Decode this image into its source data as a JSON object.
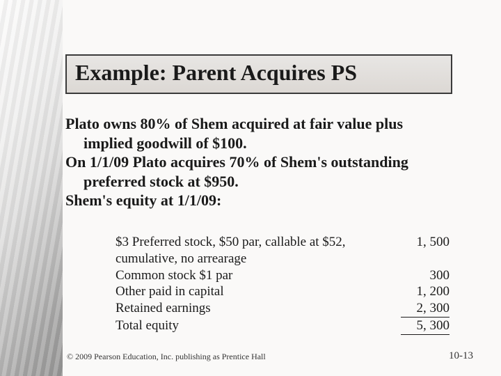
{
  "title": "Example: Parent Acquires PS",
  "body": {
    "line1": "Plato owns 80% of Shem acquired at fair value plus implied goodwill of $100.",
    "line2": "On 1/1/09 Plato acquires 70% of Shem's outstanding preferred stock at $950.",
    "line3": "Shem's equity at 1/1/09:"
  },
  "equity": {
    "rows": [
      {
        "label": "$3 Preferred stock, $50 par, callable at $52, cumulative, no arrearage",
        "value": "1, 500"
      },
      {
        "label": "Common stock $1 par",
        "value": "300"
      },
      {
        "label": "Other paid in capital",
        "value": "1, 200"
      },
      {
        "label": "Retained earnings",
        "value": "2, 300"
      },
      {
        "label": "Total equity",
        "value": "5, 300"
      }
    ]
  },
  "footer": {
    "copyright": "© 2009 Pearson Education, Inc. publishing as Prentice Hall",
    "page": "10-13"
  },
  "colors": {
    "title_border": "#3a3a3a",
    "title_bg": "#e0ddd9",
    "text": "#1a1a1a",
    "slide_bg": "#faf9f8"
  }
}
